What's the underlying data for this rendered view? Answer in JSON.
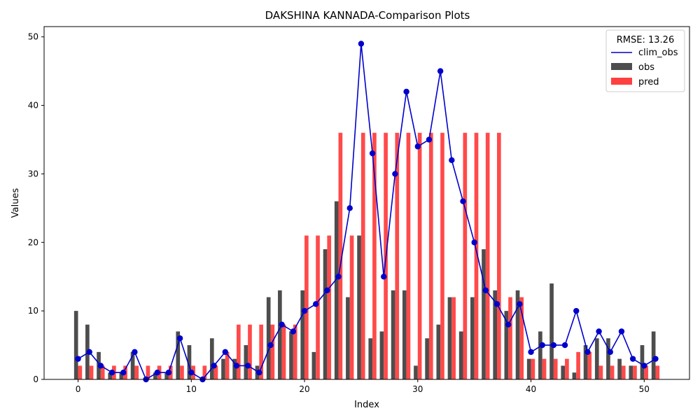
{
  "chart_data": {
    "type": "bar",
    "title": "DAKSHINA KANNADA-Comparison Plots",
    "xlabel": "Index",
    "ylabel": "Values",
    "xlim": [
      -3,
      54
    ],
    "ylim": [
      0,
      51.5
    ],
    "xticks": [
      0,
      10,
      20,
      30,
      40,
      50
    ],
    "yticks": [
      0,
      10,
      20,
      30,
      40,
      50
    ],
    "grid": false,
    "legend": {
      "placement": "top-right",
      "title": "RMSE: 13.26",
      "entries": [
        "clim_obs",
        "obs",
        "pred"
      ]
    },
    "x": [
      0,
      1,
      2,
      3,
      4,
      5,
      6,
      7,
      8,
      9,
      10,
      11,
      12,
      13,
      14,
      15,
      16,
      17,
      18,
      19,
      20,
      21,
      22,
      23,
      24,
      25,
      26,
      27,
      28,
      29,
      30,
      31,
      32,
      33,
      34,
      35,
      36,
      37,
      38,
      39,
      40,
      41,
      42,
      43,
      44,
      45,
      46,
      47,
      48,
      49,
      50,
      51
    ],
    "series": [
      {
        "name": "clim_obs",
        "kind": "line",
        "color": "#0000cc",
        "values": [
          3,
          4,
          2,
          1,
          1,
          4,
          0,
          1,
          1,
          6,
          1,
          0,
          2,
          4,
          2,
          2,
          1,
          5,
          8,
          7,
          10,
          11,
          13,
          15,
          25,
          49,
          33,
          15,
          30,
          42,
          34,
          35,
          45,
          32,
          26,
          20,
          13,
          11,
          8,
          11,
          4,
          5,
          5,
          5,
          10,
          4,
          7,
          4,
          7,
          3,
          2,
          3
        ]
      },
      {
        "name": "obs",
        "kind": "bar",
        "color": "#3a3a3a",
        "values": [
          10,
          8,
          4,
          1,
          1,
          4,
          0,
          1,
          1,
          7,
          5,
          0,
          6,
          3,
          3,
          5,
          2,
          12,
          13,
          7,
          13,
          4,
          19,
          26,
          12,
          21,
          6,
          7,
          13,
          13,
          2,
          6,
          8,
          12,
          7,
          12,
          19,
          13,
          10,
          13,
          3,
          7,
          14,
          2,
          1,
          5,
          6,
          6,
          3,
          2,
          5,
          7
        ]
      },
      {
        "name": "pred",
        "kind": "bar",
        "color": "#ff4040",
        "values": [
          2,
          2,
          2,
          2,
          2,
          2,
          2,
          2,
          2,
          2,
          2,
          2,
          2,
          4,
          8,
          8,
          8,
          8,
          8,
          8,
          21,
          21,
          21,
          36,
          21,
          36,
          36,
          36,
          36,
          36,
          36,
          36,
          36,
          12,
          36,
          36,
          36,
          36,
          12,
          12,
          3,
          3,
          3,
          3,
          4,
          4,
          2,
          2,
          2,
          2,
          2,
          2
        ]
      }
    ]
  }
}
